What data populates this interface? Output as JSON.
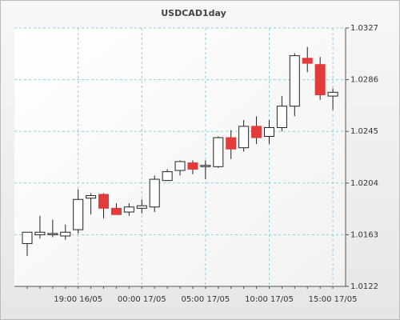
{
  "chart_data": {
    "type": "candlestick",
    "title": "USDCAD1day",
    "categories": [
      null,
      null,
      null,
      null,
      "19:00 16/05",
      null,
      null,
      null,
      null,
      "00:00 17/05",
      null,
      null,
      null,
      null,
      "05:00 17/05",
      null,
      null,
      null,
      null,
      "10:00 17/05",
      null,
      null,
      null,
      null,
      "15:00 17/05"
    ],
    "open": [
      1.0156,
      1.0163,
      1.0163,
      1.0162,
      1.0167,
      1.0192,
      1.0195,
      1.0184,
      1.0181,
      1.0184,
      1.0185,
      1.0206,
      1.0214,
      1.022,
      1.0217,
      1.0217,
      1.024,
      1.0232,
      1.0249,
      1.0241,
      1.0248,
      1.0265,
      1.0303,
      1.0298,
      1.0273
    ],
    "high": [
      1.0165,
      1.0178,
      1.0175,
      1.0171,
      1.0199,
      1.0196,
      1.0196,
      1.0188,
      1.0188,
      1.0191,
      1.021,
      1.0215,
      1.0222,
      1.0222,
      1.0222,
      1.0241,
      1.0246,
      1.0254,
      1.0257,
      1.0254,
      1.0273,
      1.0307,
      1.0312,
      1.0304,
      1.0279
    ],
    "low": [
      1.0146,
      1.016,
      1.0161,
      1.0159,
      1.0164,
      1.0179,
      1.0176,
      1.0179,
      1.0178,
      1.018,
      1.0181,
      1.0206,
      1.021,
      1.0211,
      1.0207,
      1.0216,
      1.0223,
      1.0229,
      1.0235,
      1.0235,
      1.0245,
      1.0257,
      1.0292,
      1.027,
      1.0262
    ],
    "close": [
      1.0165,
      1.0165,
      1.0164,
      1.0165,
      1.0191,
      1.0194,
      1.0184,
      1.0179,
      1.0185,
      1.0186,
      1.0207,
      1.0213,
      1.0221,
      1.0215,
      1.0218,
      1.024,
      1.0231,
      1.0249,
      1.024,
      1.0248,
      1.0265,
      1.0305,
      1.0299,
      1.0274,
      1.0276
    ],
    "up_color": "#ffffff",
    "down_color": "#e23b3b",
    "ylim": [
      1.0122,
      1.0327
    ],
    "yticks": [
      1.0122,
      1.0163,
      1.0204,
      1.0245,
      1.0286,
      1.0327
    ],
    "grid": true
  }
}
